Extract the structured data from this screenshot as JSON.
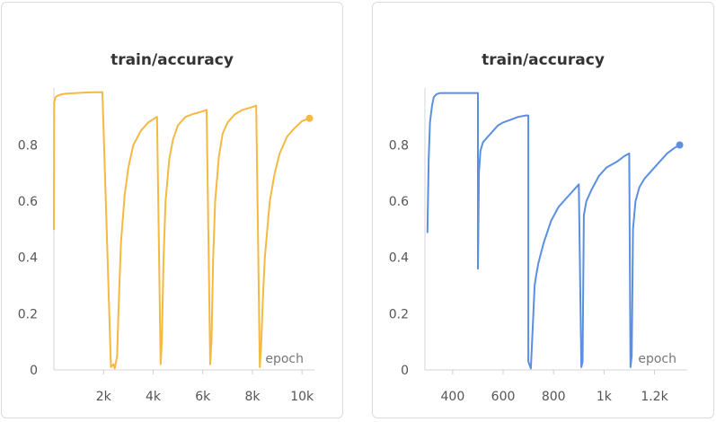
{
  "chart_data": [
    {
      "type": "line",
      "title": "train/accuracy",
      "xlabel": "epoch",
      "ylabel": "",
      "xlim": [
        0,
        10500
      ],
      "ylim": [
        0,
        0.99
      ],
      "x_ticks": [
        2000,
        4000,
        6000,
        8000,
        10000
      ],
      "x_tick_labels": [
        "2k",
        "4k",
        "6k",
        "8k",
        "10k"
      ],
      "y_ticks": [
        0,
        0.2,
        0.4,
        0.6,
        0.8
      ],
      "y_tick_labels": [
        "0",
        "0.2",
        "0.4",
        "0.6",
        "0.8"
      ],
      "grid": false,
      "color": "#f5b942",
      "series": [
        {
          "x": [
            0,
            10,
            60,
            150,
            300,
            500,
            900,
            1400,
            1950,
            1955,
            2300,
            2400,
            2450,
            2550,
            2600,
            2700,
            2850,
            3000,
            3200,
            3500,
            3800,
            4150,
            4155,
            4300,
            4350,
            4420,
            4500,
            4650,
            4800,
            5000,
            5300,
            5600,
            6000,
            6150,
            6155,
            6300,
            6350,
            6420,
            6500,
            6650,
            6800,
            7000,
            7300,
            7600,
            8000,
            8150,
            8155,
            8300,
            8350,
            8420,
            8500,
            8700,
            8900,
            9100,
            9400,
            9700,
            10000,
            10300
          ],
          "y": [
            0.5,
            0.95,
            0.97,
            0.975,
            0.98,
            0.983,
            0.985,
            0.987,
            0.988,
            0.988,
            0.01,
            0.02,
            0.005,
            0.05,
            0.2,
            0.45,
            0.62,
            0.72,
            0.8,
            0.85,
            0.88,
            0.9,
            0.9,
            0.02,
            0.1,
            0.4,
            0.6,
            0.75,
            0.82,
            0.87,
            0.9,
            0.91,
            0.92,
            0.925,
            0.925,
            0.02,
            0.1,
            0.4,
            0.6,
            0.76,
            0.84,
            0.88,
            0.91,
            0.925,
            0.935,
            0.94,
            0.94,
            0.01,
            0.08,
            0.25,
            0.4,
            0.6,
            0.7,
            0.77,
            0.83,
            0.86,
            0.885,
            0.895
          ]
        }
      ]
    },
    {
      "type": "line",
      "title": "train/accuracy",
      "xlabel": "epoch",
      "ylabel": "",
      "xlim": [
        290,
        1330
      ],
      "ylim": [
        0,
        0.99
      ],
      "x_ticks": [
        400,
        600,
        800,
        1000,
        1200
      ],
      "x_tick_labels": [
        "400",
        "600",
        "800",
        "1k",
        "1.2k"
      ],
      "y_ticks": [
        0,
        0.2,
        0.4,
        0.6,
        0.8
      ],
      "y_tick_labels": [
        "0",
        "0.2",
        "0.4",
        "0.6",
        "0.8"
      ],
      "grid": false,
      "color": "#5b8fe0",
      "series": [
        {
          "x": [
            300,
            305,
            310,
            318,
            325,
            335,
            350,
            400,
            450,
            500,
            500,
            502,
            504,
            510,
            520,
            540,
            560,
            580,
            600,
            630,
            660,
            690,
            700,
            700,
            710,
            720,
            725,
            730,
            740,
            760,
            790,
            820,
            850,
            880,
            900,
            900,
            910,
            915,
            920,
            930,
            950,
            980,
            1010,
            1050,
            1080,
            1100,
            1100,
            1105,
            1110,
            1115,
            1125,
            1140,
            1160,
            1190,
            1220,
            1250,
            1280,
            1300
          ],
          "y": [
            0.49,
            0.75,
            0.88,
            0.94,
            0.97,
            0.98,
            0.985,
            0.985,
            0.985,
            0.985,
            0.36,
            0.5,
            0.7,
            0.78,
            0.81,
            0.83,
            0.85,
            0.87,
            0.88,
            0.89,
            0.9,
            0.905,
            0.905,
            0.03,
            0.005,
            0.2,
            0.3,
            0.33,
            0.38,
            0.45,
            0.53,
            0.58,
            0.61,
            0.64,
            0.66,
            0.66,
            0.01,
            0.03,
            0.55,
            0.6,
            0.64,
            0.69,
            0.72,
            0.74,
            0.76,
            0.77,
            0.77,
            0.01,
            0.05,
            0.5,
            0.6,
            0.65,
            0.68,
            0.71,
            0.74,
            0.77,
            0.79,
            0.8
          ]
        }
      ]
    }
  ]
}
